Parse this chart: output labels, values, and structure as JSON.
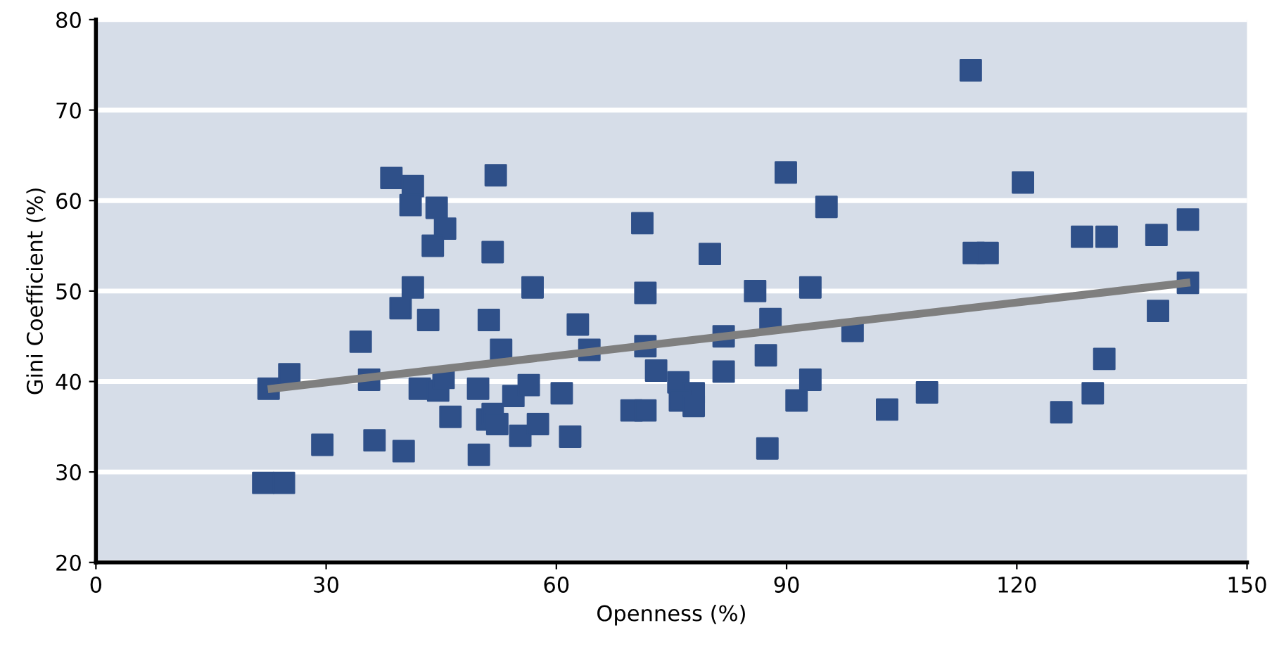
{
  "chart_data": {
    "type": "scatter",
    "xlabel": "Openness (%)",
    "ylabel": "Gini Coefficient (%)",
    "xlim": [
      0,
      150
    ],
    "xticks": [
      0,
      30,
      60,
      90,
      120,
      150
    ],
    "ylim": [
      20,
      80
    ],
    "yticks": [
      20,
      30,
      40,
      50,
      60,
      70,
      80
    ],
    "grid": "y",
    "series": [
      {
        "color": "#2f5089",
        "marker": "square",
        "x": [
          22.5,
          25.2,
          21.8,
          24.5,
          29.5,
          34.5,
          35.6,
          36.3,
          40.1,
          38.5,
          41.3,
          41.0,
          44.4,
          45.5,
          43.9,
          41.3,
          39.7,
          43.3,
          42.2,
          44.6,
          45.3,
          46.2,
          49.9,
          49.8,
          51.0,
          51.2,
          51.7,
          52.1,
          52.8,
          51.7,
          52.3,
          54.4,
          56.4,
          55.3,
          56.9,
          57.6,
          60.7,
          61.8,
          62.8,
          64.3,
          71.2,
          71.6,
          71.6,
          73.0,
          69.8,
          71.6,
          75.9,
          77.9,
          76.1,
          77.9,
          81.8,
          81.8,
          80.0,
          85.9,
          87.9,
          87.3,
          87.5,
          89.9,
          95.2,
          93.1,
          93.1,
          91.3,
          98.6,
          103.1,
          108.3,
          114.0,
          114.4,
          116.2,
          120.8,
          125.8,
          128.5,
          129.9,
          131.4,
          131.7,
          138.2,
          138.4,
          142.3,
          142.3
        ],
        "values": [
          39.2,
          40.8,
          28.8,
          28.8,
          33.0,
          44.4,
          40.2,
          33.5,
          32.3,
          62.5,
          61.6,
          59.5,
          59.2,
          56.9,
          55.0,
          50.4,
          48.1,
          46.8,
          39.2,
          39.0,
          40.4,
          36.1,
          31.9,
          39.2,
          35.8,
          46.8,
          54.3,
          62.8,
          43.5,
          36.4,
          35.3,
          38.4,
          39.6,
          34.0,
          50.4,
          35.3,
          38.7,
          33.9,
          46.3,
          43.5,
          57.5,
          49.8,
          43.9,
          41.2,
          36.8,
          36.8,
          39.9,
          38.7,
          37.9,
          37.3,
          41.1,
          45.0,
          54.1,
          50.0,
          46.9,
          42.9,
          32.6,
          63.1,
          59.3,
          50.4,
          40.2,
          37.9,
          45.6,
          36.9,
          38.8,
          74.4,
          54.2,
          54.2,
          62.0,
          36.6,
          56.0,
          38.7,
          42.5,
          56.0,
          56.2,
          47.8,
          57.9,
          50.9
        ]
      },
      {
        "type": "line",
        "color": "#7f7f7f",
        "marker": "none",
        "line_style": "solid",
        "x": [
          22.9,
          142.1
        ],
        "values": [
          39.2,
          50.9
        ]
      }
    ]
  }
}
